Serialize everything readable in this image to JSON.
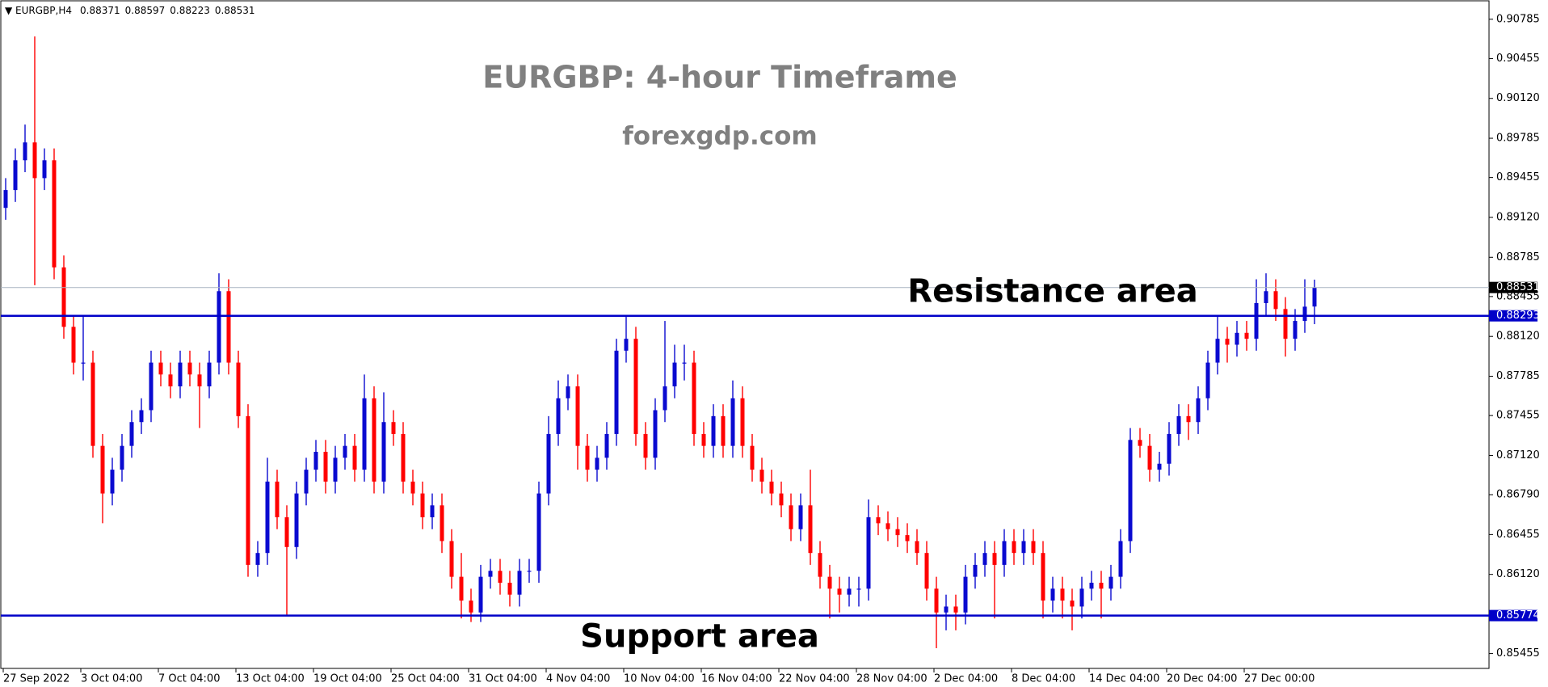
{
  "chart_data": {
    "type": "candlestick",
    "symbol": "EURGBP,H4",
    "title": "EURGBP: 4-hour Timeframe",
    "subtitle": "forexgdp.com",
    "up_color": "#0a0ad0",
    "down_color": "#ff0000",
    "categories": [
      "27 Sep 2022",
      null,
      null,
      null,
      null,
      null,
      null,
      null,
      "3 Oct 04:00",
      null,
      null,
      null,
      null,
      null,
      null,
      null,
      "7 Oct 04:00",
      null,
      null,
      null,
      null,
      null,
      null,
      null,
      "13 Oct 04:00",
      null,
      null,
      null,
      null,
      null,
      null,
      null,
      "19 Oct 04:00",
      null,
      null,
      null,
      null,
      null,
      null,
      null,
      "25 Oct 04:00",
      null,
      null,
      null,
      null,
      null,
      null,
      null,
      "31 Oct 04:00",
      null,
      null,
      null,
      null,
      null,
      null,
      null,
      "4 Nov 04:00",
      null,
      null,
      null,
      null,
      null,
      null,
      null,
      "10 Nov 04:00",
      null,
      null,
      null,
      null,
      null,
      null,
      null,
      "16 Nov 04:00",
      null,
      null,
      null,
      null,
      null,
      null,
      null,
      "22 Nov 04:00",
      null,
      null,
      null,
      null,
      null,
      null,
      null,
      "28 Nov 04:00",
      null,
      null,
      null,
      null,
      null,
      null,
      null,
      "2 Dec 04:00",
      null,
      null,
      null,
      null,
      null,
      null,
      null,
      "8 Dec 04:00",
      null,
      null,
      null,
      null,
      null,
      null,
      null,
      "14 Dec 04:00",
      null,
      null,
      null,
      null,
      null,
      null,
      null,
      "20 Dec 04:00",
      null,
      null,
      null,
      null,
      null,
      null,
      null,
      "27 Dec 00:00",
      null,
      null,
      null,
      null,
      null,
      null,
      null
    ],
    "open": [
      0.892,
      0.8935,
      0.896,
      0.8975,
      0.8945,
      0.896,
      0.887,
      0.882,
      0.879,
      0.879,
      0.872,
      0.868,
      0.87,
      0.872,
      0.874,
      0.875,
      0.879,
      0.878,
      0.877,
      0.879,
      0.878,
      0.877,
      0.879,
      0.885,
      0.879,
      0.8745,
      0.862,
      0.863,
      0.869,
      0.866,
      0.8635,
      0.868,
      0.87,
      0.8715,
      0.869,
      0.871,
      0.872,
      0.87,
      0.876,
      0.869,
      0.874,
      0.873,
      0.869,
      0.868,
      0.866,
      0.867,
      0.864,
      0.861,
      0.859,
      0.858,
      0.861,
      0.8615,
      0.8605,
      0.8595,
      0.8615,
      0.8615,
      0.868,
      0.873,
      0.876,
      0.877,
      0.872,
      0.87,
      0.871,
      0.873,
      0.88,
      0.881,
      0.873,
      0.871,
      0.875,
      0.877,
      0.879,
      0.879,
      0.873,
      0.872,
      0.8745,
      0.872,
      0.876,
      0.872,
      0.87,
      0.869,
      0.868,
      0.867,
      0.865,
      0.867,
      0.863,
      0.861,
      0.86,
      0.8595,
      0.86,
      0.86,
      0.866,
      0.8655,
      0.865,
      0.8645,
      0.864,
      0.863,
      0.86,
      0.858,
      0.8585,
      0.858,
      0.861,
      0.862,
      0.863,
      0.862,
      0.864,
      0.863,
      0.864,
      0.863,
      0.859,
      0.86,
      0.859,
      0.8585,
      0.86,
      0.8605,
      0.86,
      0.861,
      0.864,
      0.8725,
      0.872,
      0.87,
      0.8705,
      0.873,
      0.8745,
      0.874,
      0.876,
      0.879,
      0.881,
      0.8805,
      0.8815,
      0.881,
      0.884,
      0.885,
      0.8835,
      0.881,
      0.8825,
      0.88371
    ],
    "high": [
      0.8945,
      0.897,
      0.899,
      0.9064,
      0.897,
      0.897,
      0.888,
      0.883,
      0.883,
      0.88,
      0.873,
      0.871,
      0.873,
      0.875,
      0.876,
      0.88,
      0.88,
      0.879,
      0.88,
      0.88,
      0.879,
      0.88,
      0.8865,
      0.886,
      0.88,
      0.8755,
      0.864,
      0.871,
      0.87,
      0.867,
      0.869,
      0.871,
      0.8725,
      0.8725,
      0.872,
      0.873,
      0.873,
      0.878,
      0.877,
      0.8765,
      0.875,
      0.874,
      0.87,
      0.869,
      0.868,
      0.868,
      0.865,
      0.863,
      0.86,
      0.862,
      0.8625,
      0.8625,
      0.8615,
      0.8625,
      0.8625,
      0.869,
      0.8745,
      0.8775,
      0.878,
      0.878,
      0.873,
      0.872,
      0.874,
      0.881,
      0.883,
      0.882,
      0.874,
      0.876,
      0.8825,
      0.8805,
      0.8805,
      0.88,
      0.874,
      0.8755,
      0.8755,
      0.8775,
      0.877,
      0.873,
      0.871,
      0.87,
      0.869,
      0.868,
      0.868,
      0.87,
      0.864,
      0.862,
      0.861,
      0.861,
      0.861,
      0.8675,
      0.867,
      0.8665,
      0.866,
      0.8655,
      0.865,
      0.864,
      0.861,
      0.8595,
      0.8595,
      0.862,
      0.863,
      0.864,
      0.864,
      0.865,
      0.865,
      0.865,
      0.865,
      0.864,
      0.861,
      0.861,
      0.86,
      0.861,
      0.8615,
      0.8615,
      0.862,
      0.865,
      0.8735,
      0.8735,
      0.873,
      0.8715,
      0.874,
      0.8755,
      0.8755,
      0.877,
      0.88,
      0.883,
      0.882,
      0.8825,
      0.8825,
      0.886,
      0.8865,
      0.886,
      0.8845,
      0.8835,
      0.886,
      0.88597
    ],
    "low": [
      0.891,
      0.8925,
      0.895,
      0.8855,
      0.8935,
      0.886,
      0.881,
      0.878,
      0.8775,
      0.871,
      0.8655,
      0.867,
      0.869,
      0.871,
      0.873,
      0.874,
      0.877,
      0.876,
      0.876,
      0.877,
      0.8735,
      0.876,
      0.878,
      0.878,
      0.8735,
      0.861,
      0.861,
      0.862,
      0.865,
      0.8578,
      0.8625,
      0.867,
      0.869,
      0.868,
      0.868,
      0.87,
      0.869,
      0.869,
      0.868,
      0.868,
      0.872,
      0.868,
      0.867,
      0.865,
      0.865,
      0.863,
      0.86,
      0.8575,
      0.8572,
      0.8572,
      0.86,
      0.8595,
      0.8585,
      0.8585,
      0.8605,
      0.8605,
      0.867,
      0.872,
      0.875,
      0.87,
      0.869,
      0.869,
      0.87,
      0.872,
      0.879,
      0.872,
      0.87,
      0.87,
      0.874,
      0.876,
      0.8775,
      0.872,
      0.871,
      0.871,
      0.871,
      0.871,
      0.871,
      0.869,
      0.868,
      0.867,
      0.866,
      0.864,
      0.864,
      0.862,
      0.86,
      0.8575,
      0.858,
      0.8585,
      0.8585,
      0.859,
      0.8645,
      0.864,
      0.8635,
      0.863,
      0.862,
      0.859,
      0.855,
      0.8565,
      0.8565,
      0.857,
      0.86,
      0.861,
      0.8575,
      0.861,
      0.862,
      0.862,
      0.862,
      0.8575,
      0.858,
      0.8575,
      0.8565,
      0.8575,
      0.859,
      0.8575,
      0.859,
      0.86,
      0.863,
      0.871,
      0.869,
      0.869,
      0.8695,
      0.872,
      0.8725,
      0.873,
      0.875,
      0.878,
      0.879,
      0.8795,
      0.88,
      0.88,
      0.883,
      0.8825,
      0.8795,
      0.88,
      0.8815,
      0.88223
    ],
    "close": [
      0.8935,
      0.896,
      0.8975,
      0.8945,
      0.896,
      0.887,
      0.882,
      0.879,
      0.879,
      0.872,
      0.868,
      0.87,
      0.872,
      0.874,
      0.875,
      0.879,
      0.878,
      0.877,
      0.879,
      0.878,
      0.877,
      0.879,
      0.885,
      0.879,
      0.8745,
      0.862,
      0.863,
      0.869,
      0.866,
      0.8635,
      0.868,
      0.87,
      0.8715,
      0.869,
      0.871,
      0.872,
      0.87,
      0.876,
      0.869,
      0.874,
      0.873,
      0.869,
      0.868,
      0.866,
      0.867,
      0.864,
      0.861,
      0.859,
      0.858,
      0.861,
      0.8615,
      0.8605,
      0.8595,
      0.8615,
      0.8615,
      0.868,
      0.873,
      0.876,
      0.877,
      0.872,
      0.87,
      0.871,
      0.873,
      0.88,
      0.881,
      0.873,
      0.871,
      0.875,
      0.877,
      0.879,
      0.879,
      0.873,
      0.872,
      0.8745,
      0.872,
      0.876,
      0.872,
      0.87,
      0.869,
      0.868,
      0.867,
      0.865,
      0.867,
      0.863,
      0.861,
      0.86,
      0.8595,
      0.86,
      0.86,
      0.866,
      0.8655,
      0.865,
      0.8645,
      0.864,
      0.863,
      0.86,
      0.858,
      0.8585,
      0.858,
      0.861,
      0.862,
      0.863,
      0.862,
      0.864,
      0.863,
      0.864,
      0.863,
      0.859,
      0.86,
      0.859,
      0.8585,
      0.86,
      0.8605,
      0.86,
      0.861,
      0.864,
      0.8725,
      0.872,
      0.87,
      0.8705,
      0.873,
      0.8745,
      0.874,
      0.876,
      0.879,
      0.881,
      0.8805,
      0.8815,
      0.881,
      0.884,
      0.885,
      0.8835,
      0.881,
      0.8825,
      0.8837,
      0.88531
    ],
    "ylim": [
      0.8533,
      0.9094
    ],
    "yticks": [
      0.90785,
      0.90455,
      {
        "value": 0.9012,
        "label": "0.90120"
      },
      0.89785,
      0.89455,
      {
        "value": 0.8912,
        "label": "0.89120"
      },
      0.88785,
      0.88455,
      {
        "value": 0.8812,
        "label": "0.88120"
      },
      0.87785,
      0.87455,
      {
        "value": 0.8712,
        "label": "0.87120"
      },
      {
        "value": 0.8679,
        "label": "0.86790"
      },
      0.86455,
      {
        "value": 0.8612,
        "label": "0.86120"
      },
      0.85455
    ],
    "levels": [
      {
        "name": "Resistance area",
        "value": 0.88293,
        "color": "#0000c8"
      },
      {
        "name": "Support area",
        "value": 0.85774,
        "color": "#0000c8"
      }
    ],
    "last_price_line_color": "#a8b4c0",
    "grid": false
  }
}
